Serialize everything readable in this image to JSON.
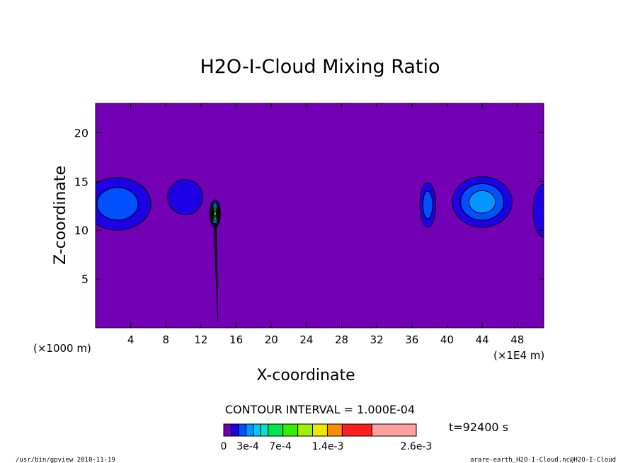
{
  "chart_data": {
    "type": "contour",
    "title": "H2O-I-Cloud Mixing Ratio",
    "xlabel": "X-coordinate",
    "ylabel": "Z-coordinate",
    "x_unit_left": "(×1000 m)",
    "x_unit_right": "(×1E4 m)",
    "xlim": [
      0,
      51
    ],
    "ylim": [
      0,
      23
    ],
    "x_ticks": [
      4,
      8,
      12,
      16,
      20,
      24,
      28,
      32,
      36,
      40,
      44,
      48
    ],
    "x_tick_labels": [
      "4",
      "8",
      "12",
      "16",
      "20",
      "24",
      "28",
      "32",
      "36",
      "40",
      "44",
      "48"
    ],
    "y_ticks": [
      5,
      10,
      15,
      20
    ],
    "y_tick_labels": [
      "5",
      "10",
      "15",
      "20"
    ],
    "background_color": "#7300b4",
    "cloud_features": [
      {
        "cx": 2.5,
        "cz": 12.7,
        "rx": 3.8,
        "rz": 2.7,
        "levels": 2
      },
      {
        "cx": 10.2,
        "cz": 13.4,
        "rx": 2.0,
        "rz": 1.8,
        "levels": 1
      },
      {
        "cx": 37.8,
        "cz": 12.6,
        "rx": 0.9,
        "rz": 2.3,
        "levels": 2
      },
      {
        "cx": 44.0,
        "cz": 12.9,
        "rx": 3.4,
        "rz": 2.6,
        "levels": 3
      },
      {
        "cx": 51.0,
        "cz": 12.0,
        "rx": 1.2,
        "rz": 2.7,
        "levels": 1
      },
      {
        "cx": 13.6,
        "cz": 11.7,
        "rx": 0.6,
        "rz": 1.4,
        "levels": 8
      }
    ],
    "contour_interval_text": "CONTOUR INTERVAL = 1.000E-04",
    "colorbar": {
      "colors": [
        "#7300b4",
        "#1e00e6",
        "#0050ff",
        "#0096ff",
        "#00c8ff",
        "#00e6c8",
        "#00e650",
        "#32f000",
        "#a0f000",
        "#f0e600",
        "#ff8c00",
        "#ff1e1e",
        "#ffa0a0"
      ],
      "label_items": [
        "0",
        "3e-4",
        "7e-4",
        "1.4e-3",
        "2.6e-3"
      ]
    },
    "time_label": "t=92400 s"
  },
  "footer": {
    "left": "/usr/bin/gpview  2010-11-19",
    "right": "arare-earth_H2O-I-Cloud.nc@H2O-I-Cloud"
  }
}
